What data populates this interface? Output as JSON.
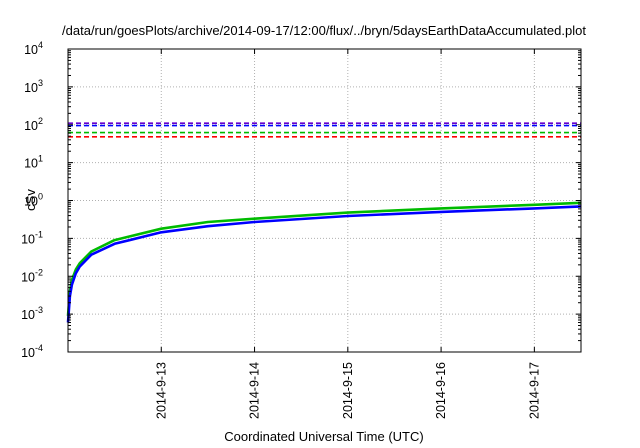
{
  "chart_data": {
    "type": "line",
    "title": "/data/run/goesPlots/archive/2014-09-17/12:00/flux/../bryn/5daysEarthDataAccumulated.plot",
    "xlabel": "Coordinated Universal Time (UTC)",
    "ylabel": "cSv",
    "y_scale": "log",
    "ylim": [
      0.0001,
      10000
    ],
    "y_ticks": [
      {
        "base": "10",
        "exp": "-4"
      },
      {
        "base": "10",
        "exp": "-3"
      },
      {
        "base": "10",
        "exp": "-2"
      },
      {
        "base": "10",
        "exp": "-1"
      },
      {
        "base": "10",
        "exp": "0"
      },
      {
        "base": "10",
        "exp": "1"
      },
      {
        "base": "10",
        "exp": "2"
      },
      {
        "base": "10",
        "exp": "3"
      },
      {
        "base": "10",
        "exp": "4"
      }
    ],
    "xlim": [
      "2014-09-12 00:00",
      "2014-09-17 12:00"
    ],
    "x_ticks": [
      "2014-9-13",
      "2014-9-14",
      "2014-9-15",
      "2014-9-16",
      "2014-9-17"
    ],
    "grid": true,
    "series": [
      {
        "style": "dashed",
        "color": "#6600cc",
        "x": [
          "2014-09-12 00:00",
          "2014-09-17 12:00"
        ],
        "values": [
          110,
          110
        ]
      },
      {
        "style": "dashed",
        "color": "#0000ff",
        "x": [
          "2014-09-12 00:00",
          "2014-09-17 12:00"
        ],
        "values": [
          95,
          95
        ]
      },
      {
        "style": "dashed",
        "color": "#00bb00",
        "x": [
          "2014-09-12 00:00",
          "2014-09-17 12:00"
        ],
        "values": [
          62,
          62
        ]
      },
      {
        "style": "dashed",
        "color": "#ff0000",
        "x": [
          "2014-09-12 00:00",
          "2014-09-17 12:00"
        ],
        "values": [
          48,
          48
        ]
      },
      {
        "style": "solid",
        "color": "#00bb00",
        "x": [
          "2014-09-12 00:00",
          "2014-09-12 00:30",
          "2014-09-12 01:00",
          "2014-09-12 02:00",
          "2014-09-12 03:00",
          "2014-09-12 06:00",
          "2014-09-12 12:00",
          "2014-09-13 00:00",
          "2014-09-13 12:00",
          "2014-09-14 00:00",
          "2014-09-15 00:00",
          "2014-09-16 00:00",
          "2014-09-17 00:00",
          "2014-09-17 12:00"
        ],
        "values": [
          0.0009,
          0.004,
          0.008,
          0.015,
          0.022,
          0.045,
          0.09,
          0.18,
          0.27,
          0.33,
          0.48,
          0.62,
          0.77,
          0.87
        ]
      },
      {
        "style": "solid",
        "color": "#0000ff",
        "x": [
          "2014-09-12 00:00",
          "2014-09-12 00:30",
          "2014-09-12 01:00",
          "2014-09-12 02:00",
          "2014-09-12 03:00",
          "2014-09-12 06:00",
          "2014-09-12 12:00",
          "2014-09-13 00:00",
          "2014-09-13 12:00",
          "2014-09-14 00:00",
          "2014-09-15 00:00",
          "2014-09-16 00:00",
          "2014-09-17 00:00",
          "2014-09-17 12:00"
        ],
        "values": [
          0.0006,
          0.003,
          0.006,
          0.012,
          0.018,
          0.037,
          0.072,
          0.145,
          0.21,
          0.27,
          0.39,
          0.5,
          0.62,
          0.7
        ]
      }
    ],
    "colors": {
      "axis": "#000000",
      "grid": "#b0b0b0"
    }
  }
}
